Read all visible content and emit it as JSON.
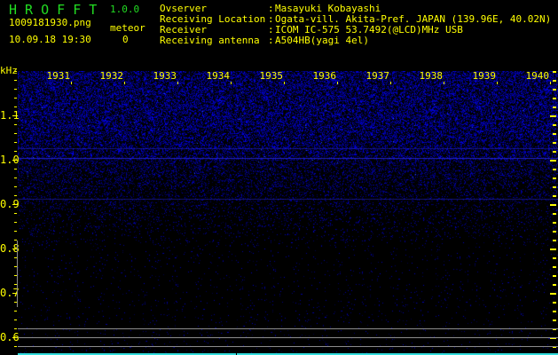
{
  "app": {
    "name": "H R O F F T",
    "version": "1.0.0"
  },
  "file": {
    "name": "1009181930.png",
    "datetime": "10.09.18 19:30"
  },
  "meteor": {
    "label": "meteor",
    "count": "0"
  },
  "info": [
    {
      "label": "Ovserver",
      "value": "Masayuki Kobayashi"
    },
    {
      "label": "Receiving Location",
      "value": "Ogata-vill. Akita-Pref. JAPAN (139.96E, 40.02N)"
    },
    {
      "label": "Receiver",
      "value": "ICOM IC-575 53.7492(@LCD)MHz USB"
    },
    {
      "label": "Receiving antenna",
      "value": "A504HB(yagi 4el)"
    }
  ],
  "y_axis": {
    "unit": "kHz",
    "labels": [
      "1.1",
      "1.0",
      "0.9",
      "0.8",
      "0.7",
      "0.6"
    ]
  },
  "x_axis": {
    "labels": [
      "1931",
      "1932",
      "1933",
      "1934",
      "1935",
      "1936",
      "1937",
      "1938",
      "1939",
      "1940"
    ]
  },
  "colors": {
    "text": "#ffff00",
    "title": "#22dd22",
    "signal": "#2222ff",
    "bottom_bar": "#33dddd"
  }
}
